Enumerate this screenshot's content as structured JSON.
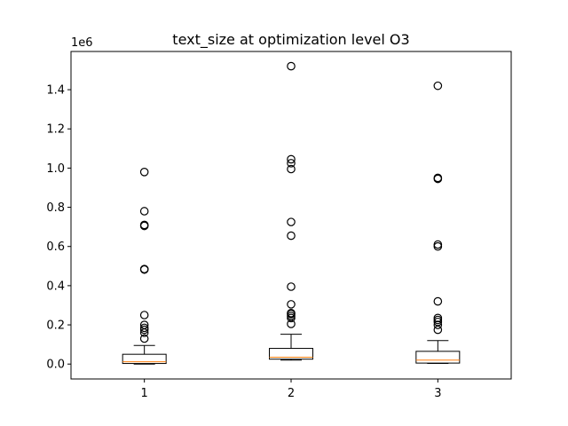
{
  "chart_data": {
    "type": "boxplot",
    "title": "text_size at optimization level O3",
    "xlabel": "",
    "ylabel": "",
    "y_offset_label": "1e6",
    "categories": [
      "1",
      "2",
      "3"
    ],
    "ylim": [
      -0.076,
      1.595
    ],
    "yticks": [
      0.0,
      0.2,
      0.4,
      0.6,
      0.8,
      1.0,
      1.2,
      1.4
    ],
    "ytick_labels": [
      "0.0",
      "0.2",
      "0.4",
      "0.6",
      "0.8",
      "1.0",
      "1.2",
      "1.4"
    ],
    "boxes": [
      {
        "label": "1",
        "whisker_low": 0.0,
        "q1": 0.003,
        "median": 0.012,
        "q3": 0.05,
        "whisker_high": 0.095,
        "outliers": [
          0.98,
          0.78,
          0.71,
          0.705,
          0.485,
          0.482,
          0.25,
          0.2,
          0.185,
          0.175,
          0.16,
          0.13
        ]
      },
      {
        "label": "2",
        "whisker_low": 0.02,
        "q1": 0.025,
        "median": 0.035,
        "q3": 0.08,
        "whisker_high": 0.152,
        "outliers": [
          1.52,
          1.045,
          1.025,
          0.995,
          0.725,
          0.655,
          0.395,
          0.305,
          0.26,
          0.255,
          0.245,
          0.235,
          0.205
        ]
      },
      {
        "label": "3",
        "whisker_low": 0.003,
        "q1": 0.005,
        "median": 0.02,
        "q3": 0.065,
        "whisker_high": 0.12,
        "outliers": [
          1.42,
          0.95,
          0.945,
          0.61,
          0.6,
          0.32,
          0.235,
          0.225,
          0.215,
          0.2,
          0.175
        ]
      }
    ],
    "colors": {
      "box": "#000000",
      "median": "#ff7f0e",
      "outlier_edge": "#000000",
      "axes": "#000000"
    },
    "grid": false,
    "legend": "none"
  }
}
